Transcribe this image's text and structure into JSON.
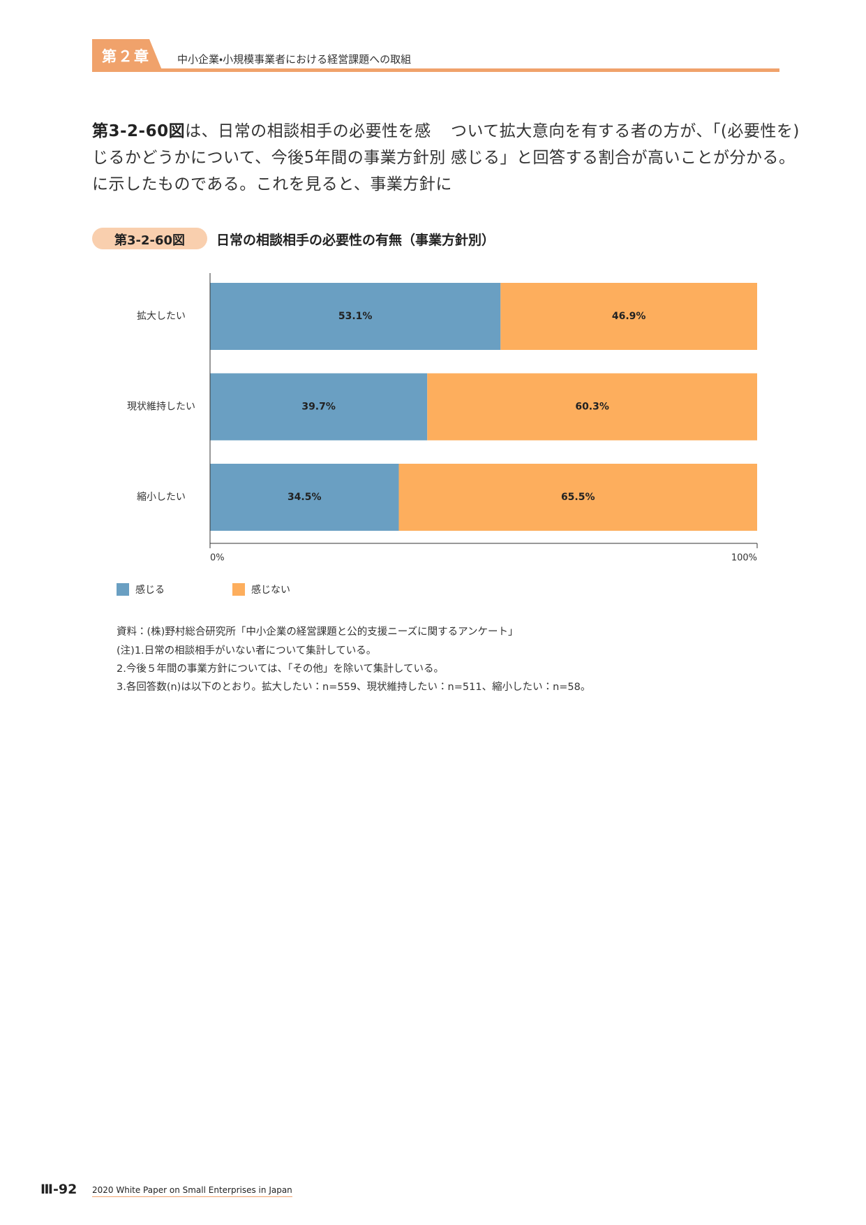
{
  "header": {
    "chapter": "第２章",
    "title": "中小企業・小規模事業者における経営課題への取組"
  },
  "body": {
    "lead": "第3-2-60図",
    "lines": [
      "は、日常の相談相手の必要性を感",
      "じるかどうかについて、今後5年間の事業方針別",
      "に示したものである。これを見ると、事業方針に",
      "ついて拡大意向を有する者の方が、「(必要性を)",
      "感じる」と回答する割合が高いことが分かる。"
    ]
  },
  "chart_data": {
    "type": "stacked-barh",
    "figure_label": "第3-2-60図",
    "title": "日常の相談相手の必要性の有無（事業方針別）",
    "categories": [
      "拡大したい",
      "現状維持したい",
      "縮小したい"
    ],
    "series": [
      {
        "name": "感じる",
        "color": "#6a9fc2",
        "values": [
          53.1,
          39.7,
          34.5
        ],
        "value_labels": [
          "53.1%",
          "39.7%",
          "34.5%"
        ]
      },
      {
        "name": "感じない",
        "color": "#fdae5d",
        "values": [
          46.9,
          60.3,
          65.5
        ],
        "value_labels": [
          "46.9%",
          "60.3%",
          "65.5%"
        ]
      }
    ],
    "xlim": [
      0,
      100
    ],
    "xticks": [
      {
        "value": 0,
        "label": "0%"
      },
      {
        "value": 100,
        "label": "100%"
      }
    ]
  },
  "notes": [
    "資料：(株)野村総合研究所「中小企業の経営課題と公的支援ニーズに関するアンケート」",
    "(注)1.日常の相談相手がいない者について集計している。",
    "2.今後５年間の事業方針については、「その他」を除いて集計している。",
    "3.各回答数(n)は以下のとおり。拡大したい：n=559、現状維持したい：n=511、縮小したい：n=58。"
  ],
  "footer": {
    "page": "Ⅲ-92",
    "publication": "2020 White Paper on Small Enterprises in Japan"
  }
}
